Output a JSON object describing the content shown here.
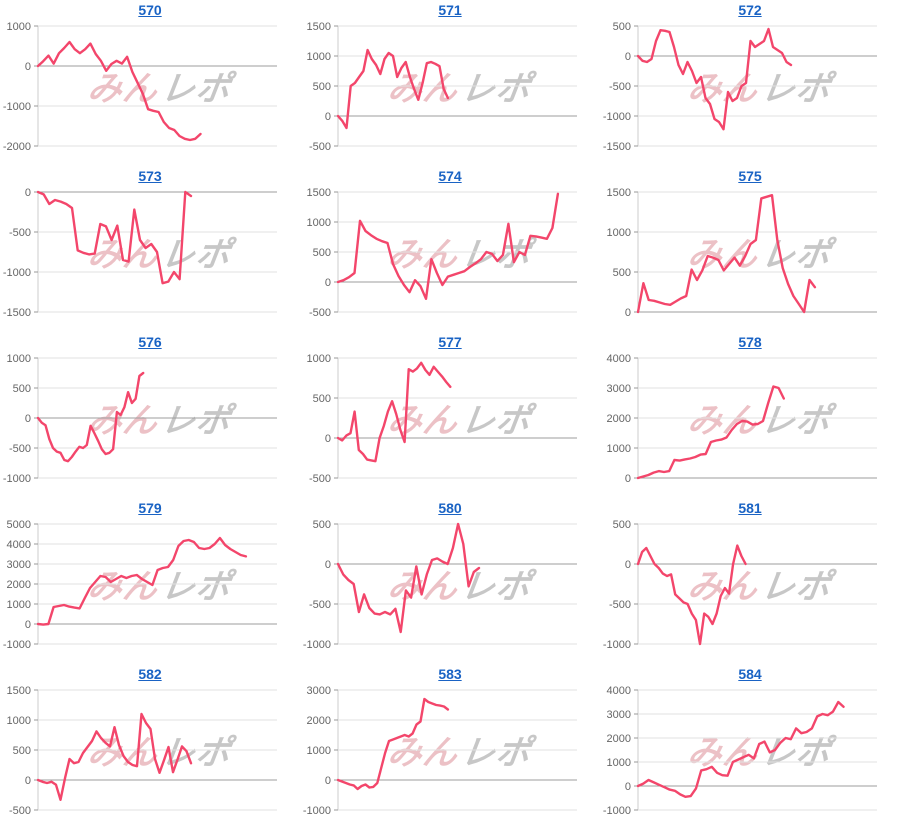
{
  "watermark": {
    "part1": "みん",
    "part2": "レポ"
  },
  "colors": {
    "line": "#f3466b",
    "grid": "#e2e2e2",
    "zero_line": "#9d9d9d",
    "axis": "#cccccc",
    "tick": "#999999",
    "tick_label": "#666666",
    "title_link": "#1a63c4"
  },
  "chart_data": [
    {
      "type": "line",
      "title": "570",
      "ylim": [
        -2000,
        1000
      ],
      "yticks": [
        1000,
        0,
        -1000,
        -2000
      ],
      "span": 0.68,
      "values": [
        0,
        120,
        260,
        60,
        320,
        450,
        600,
        420,
        320,
        420,
        560,
        300,
        130,
        -120,
        50,
        130,
        60,
        230,
        -150,
        -420,
        -700,
        -1080,
        -1120,
        -1150,
        -1400,
        -1550,
        -1600,
        -1750,
        -1820,
        -1850,
        -1820,
        -1700
      ]
    },
    {
      "type": "line",
      "title": "571",
      "ylim": [
        -500,
        1500
      ],
      "yticks": [
        1500,
        1000,
        500,
        0,
        -500
      ],
      "span": 0.46,
      "values": [
        0,
        -80,
        -200,
        500,
        550,
        650,
        750,
        1100,
        950,
        850,
        700,
        950,
        1050,
        1000,
        650,
        800,
        900,
        650,
        450,
        270,
        550,
        880,
        900,
        870,
        830,
        450,
        300
      ]
    },
    {
      "type": "line",
      "title": "572",
      "ylim": [
        -1500,
        500
      ],
      "yticks": [
        500,
        0,
        -500,
        -1000,
        -1500
      ],
      "span": 0.64,
      "values": [
        0,
        -80,
        -100,
        -50,
        250,
        430,
        420,
        400,
        150,
        -150,
        -300,
        -100,
        -250,
        -450,
        -350,
        -700,
        -800,
        -1050,
        -1100,
        -1220,
        -600,
        -750,
        -700,
        -500,
        -450,
        250,
        150,
        200,
        250,
        450,
        150,
        100,
        50,
        -100,
        -150
      ]
    },
    {
      "type": "line",
      "title": "573",
      "ylim": [
        -1500,
        0
      ],
      "yticks": [
        0,
        -500,
        -1000,
        -1500
      ],
      "span": 0.64,
      "values": [
        0,
        -30,
        -150,
        -100,
        -120,
        -150,
        -200,
        -730,
        -760,
        -780,
        -770,
        -400,
        -430,
        -600,
        -420,
        -850,
        -870,
        -220,
        -600,
        -700,
        -650,
        -750,
        -1140,
        -1120,
        -1000,
        -1090,
        0,
        -50
      ]
    },
    {
      "type": "line",
      "title": "574",
      "ylim": [
        -500,
        1500
      ],
      "yticks": [
        1500,
        1000,
        500,
        0,
        -500
      ],
      "span": 0.92,
      "values": [
        0,
        30,
        80,
        150,
        1020,
        850,
        780,
        720,
        680,
        650,
        300,
        100,
        -50,
        -170,
        30,
        -70,
        -280,
        380,
        150,
        -50,
        90,
        120,
        150,
        180,
        250,
        310,
        380,
        500,
        470,
        350,
        450,
        970,
        330,
        500,
        450,
        770,
        760,
        740,
        720,
        900,
        1470
      ]
    },
    {
      "type": "line",
      "title": "575",
      "ylim": [
        0,
        1500
      ],
      "yticks": [
        1500,
        1000,
        500,
        0
      ],
      "span": 0.74,
      "values": [
        0,
        360,
        150,
        140,
        120,
        100,
        90,
        130,
        170,
        200,
        530,
        400,
        520,
        700,
        680,
        650,
        520,
        600,
        680,
        580,
        700,
        850,
        900,
        1420,
        1440,
        1460,
        900,
        550,
        350,
        200,
        100,
        0,
        400,
        310
      ]
    },
    {
      "type": "line",
      "title": "576",
      "ylim": [
        -1000,
        1000
      ],
      "yticks": [
        1000,
        500,
        0,
        -500,
        -1000
      ],
      "span": 0.44,
      "values": [
        0,
        -80,
        -120,
        -350,
        -500,
        -560,
        -580,
        -700,
        -720,
        -650,
        -560,
        -480,
        -500,
        -450,
        -130,
        -250,
        -380,
        -520,
        -600,
        -580,
        -520,
        100,
        50,
        180,
        430,
        250,
        320,
        700,
        750
      ]
    },
    {
      "type": "line",
      "title": "577",
      "ylim": [
        -500,
        1000
      ],
      "yticks": [
        1000,
        500,
        0,
        -500
      ],
      "span": 0.47,
      "values": [
        0,
        -30,
        30,
        60,
        330,
        -150,
        -200,
        -270,
        -280,
        -290,
        0,
        150,
        330,
        460,
        300,
        100,
        -50,
        860,
        830,
        870,
        940,
        850,
        790,
        890,
        830,
        770,
        700,
        640
      ]
    },
    {
      "type": "line",
      "title": "578",
      "ylim": [
        0,
        4000
      ],
      "yticks": [
        4000,
        3000,
        2000,
        1000,
        0
      ],
      "span": 0.61,
      "values": [
        0,
        50,
        100,
        180,
        230,
        200,
        230,
        600,
        580,
        620,
        650,
        700,
        780,
        800,
        1200,
        1250,
        1280,
        1350,
        1600,
        1800,
        1900,
        1880,
        1780,
        1800,
        1900,
        2500,
        3050,
        3000,
        2650
      ]
    },
    {
      "type": "line",
      "title": "579",
      "ylim": [
        -1000,
        5000
      ],
      "yticks": [
        5000,
        4000,
        3000,
        2000,
        1000,
        0,
        -1000
      ],
      "span": 0.87,
      "values": [
        0,
        -30,
        0,
        850,
        900,
        950,
        870,
        820,
        780,
        1300,
        1800,
        2100,
        2400,
        2350,
        2100,
        2250,
        2400,
        2300,
        2400,
        2450,
        2250,
        2100,
        1950,
        2700,
        2800,
        2850,
        3200,
        3900,
        4150,
        4200,
        4100,
        3800,
        3750,
        3800,
        4000,
        4300,
        3950,
        3750,
        3600,
        3450,
        3380
      ]
    },
    {
      "type": "line",
      "title": "580",
      "ylim": [
        -1000,
        500
      ],
      "yticks": [
        500,
        0,
        -500,
        -1000
      ],
      "span": 0.59,
      "values": [
        0,
        -130,
        -200,
        -250,
        -600,
        -380,
        -550,
        -620,
        -630,
        -600,
        -630,
        -560,
        -850,
        -330,
        -420,
        -30,
        -380,
        -130,
        50,
        70,
        30,
        0,
        200,
        500,
        250,
        -280,
        -100,
        -50
      ]
    },
    {
      "type": "line",
      "title": "581",
      "ylim": [
        -1000,
        500
      ],
      "yticks": [
        500,
        0,
        -500,
        -1000
      ],
      "span": 0.45,
      "values": [
        0,
        150,
        200,
        100,
        0,
        -50,
        -120,
        -150,
        -130,
        -380,
        -430,
        -480,
        -500,
        -620,
        -700,
        -1000,
        -620,
        -660,
        -750,
        -620,
        -400,
        -300,
        -370,
        0,
        230,
        100,
        0
      ]
    },
    {
      "type": "line",
      "title": "582",
      "ylim": [
        -500,
        1500
      ],
      "yticks": [
        1500,
        1000,
        500,
        0,
        -500
      ],
      "span": 0.64,
      "values": [
        0,
        -30,
        -50,
        -30,
        -80,
        -330,
        30,
        350,
        280,
        300,
        450,
        550,
        650,
        810,
        700,
        620,
        560,
        880,
        580,
        400,
        300,
        250,
        230,
        1100,
        950,
        850,
        350,
        120,
        330,
        550,
        130,
        340,
        560,
        480,
        280
      ]
    },
    {
      "type": "line",
      "title": "583",
      "ylim": [
        -1000,
        3000
      ],
      "yticks": [
        3000,
        2000,
        1000,
        0,
        -1000
      ],
      "span": 0.46,
      "values": [
        0,
        -50,
        -100,
        -150,
        -180,
        -300,
        -200,
        -150,
        -250,
        -230,
        -100,
        400,
        900,
        1300,
        1350,
        1400,
        1450,
        1500,
        1450,
        1550,
        1850,
        1950,
        2700,
        2600,
        2550,
        2500,
        2480,
        2450,
        2350
      ]
    },
    {
      "type": "line",
      "title": "584",
      "ylim": [
        -1000,
        4000
      ],
      "yticks": [
        4000,
        3000,
        2000,
        1000,
        0,
        -1000
      ],
      "span": 0.86,
      "values": [
        0,
        100,
        250,
        150,
        50,
        -50,
        -150,
        -200,
        -350,
        -450,
        -420,
        -100,
        650,
        700,
        800,
        550,
        450,
        430,
        1000,
        1100,
        1200,
        1300,
        1150,
        1750,
        1850,
        1400,
        1500,
        1800,
        2000,
        1950,
        2400,
        2200,
        2250,
        2400,
        2900,
        3000,
        2950,
        3100,
        3500,
        3300
      ]
    }
  ]
}
